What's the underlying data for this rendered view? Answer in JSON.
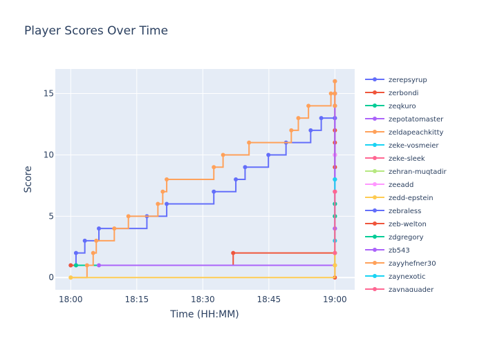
{
  "chart_data": {
    "type": "line",
    "title": "Player Scores Over Time",
    "xlabel": "Time (HH:MM)",
    "ylabel": "Score",
    "x_tick_labels": [
      "18:00",
      "18:15",
      "18:30",
      "18:45",
      "19:00"
    ],
    "x_tick_minutes": [
      0,
      15,
      30,
      45,
      60
    ],
    "xlim_minutes": [
      -3.5,
      64.5
    ],
    "y_ticks": [
      0,
      5,
      10,
      15
    ],
    "ylim": [
      -1,
      17
    ],
    "grid": true,
    "line_shape": "step",
    "legend_position": "right",
    "series": [
      {
        "name": "zerepsyrup",
        "color": "#636efa",
        "x": [
          0,
          1.2,
          1.2,
          3.2,
          6.4,
          17.3,
          21.8,
          32.5,
          37.5,
          39.6,
          44.9,
          48.9,
          54.5,
          56.9,
          60,
          60,
          60
        ],
        "y": [
          1,
          1,
          2,
          3,
          4,
          5,
          6,
          7,
          8,
          9,
          10,
          11,
          12,
          13,
          14,
          15,
          16
        ]
      },
      {
        "name": "zerbondi",
        "color": "#EF553B",
        "x": [
          0,
          36.9,
          60,
          60,
          60,
          60,
          60,
          60,
          60,
          60,
          60,
          60,
          60,
          60,
          60,
          60,
          60,
          60
        ],
        "y": [
          1,
          2,
          0,
          1,
          2,
          3,
          4,
          5,
          6,
          7,
          8,
          9,
          10,
          11,
          12,
          13,
          14,
          15
        ]
      },
      {
        "name": "zeqkuro",
        "color": "#00cc96",
        "x": [
          1.2,
          60,
          60,
          60
        ],
        "y": [
          1,
          2,
          5,
          6
        ]
      },
      {
        "name": "zepotatomaster",
        "color": "#ab63fa",
        "x": [
          6.4,
          60,
          60,
          60,
          60
        ],
        "y": [
          1,
          4,
          7,
          10,
          13
        ]
      },
      {
        "name": "zeldapeachkitty",
        "color": "#FFA15A",
        "x": [
          0,
          3.7,
          5.1,
          5.8,
          9.9,
          13.1,
          19.8,
          20.9,
          21.8,
          32.5,
          34.6,
          40.5,
          50.1,
          51.7,
          54,
          59.1,
          60,
          60,
          60
        ],
        "y": [
          0,
          1,
          2,
          3,
          4,
          5,
          6,
          7,
          8,
          9,
          10,
          11,
          12,
          13,
          14,
          15,
          16,
          1,
          2
        ]
      },
      {
        "name": "zeke-vosmeier",
        "color": "#19d3f3",
        "x": [
          60,
          60
        ],
        "y": [
          6,
          8
        ]
      },
      {
        "name": "zeke-sleek",
        "color": "#FF6692",
        "x": [
          60,
          60
        ],
        "y": [
          4,
          7
        ]
      },
      {
        "name": "zehran-muqtadir",
        "color": "#B6E880",
        "x": [
          60,
          60
        ],
        "y": [
          1,
          3
        ]
      },
      {
        "name": "zeeadd",
        "color": "#FF97FF",
        "x": [
          60,
          60
        ],
        "y": [
          4,
          10
        ]
      },
      {
        "name": "zedd-epstein",
        "color": "#FECB52",
        "x": [
          0,
          60,
          60
        ],
        "y": [
          0,
          1,
          2
        ]
      },
      {
        "name": "zebraless",
        "color": "#636efa",
        "x": [
          60,
          60
        ],
        "y": [
          8,
          13
        ]
      },
      {
        "name": "zeb-welton",
        "color": "#EF553B",
        "x": [
          60,
          60
        ],
        "y": [
          9,
          12
        ]
      },
      {
        "name": "zdgregory",
        "color": "#00cc96",
        "x": [
          60,
          60
        ],
        "y": [
          5,
          6
        ]
      },
      {
        "name": "zb543",
        "color": "#ab63fa",
        "x": [
          60,
          60
        ],
        "y": [
          4,
          15
        ]
      },
      {
        "name": "zayyhefner30",
        "color": "#FFA15A",
        "x": [
          60,
          60,
          60
        ],
        "y": [
          14,
          15,
          16
        ]
      },
      {
        "name": "zaynexotic",
        "color": "#19d3f3",
        "x": [
          60,
          60
        ],
        "y": [
          3,
          8
        ]
      },
      {
        "name": "zaynaquader",
        "color": "#FF6692",
        "x": [
          60,
          60
        ],
        "y": [
          2,
          7
        ]
      }
    ]
  }
}
